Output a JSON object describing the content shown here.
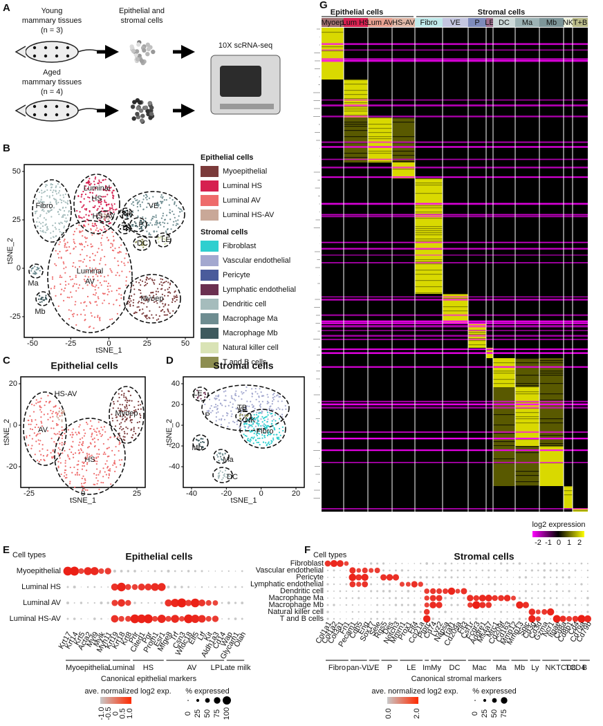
{
  "panel_a": {
    "letter": "A",
    "young": [
      "Young",
      "mammary tissues",
      "(n = 3)"
    ],
    "aged": [
      "Aged",
      "mammary tissues",
      "(n = 4)"
    ],
    "cells": [
      "Epithelial and",
      "stromal cells"
    ],
    "method": "10X scRNA-seq"
  },
  "panel_b": {
    "letter": "B",
    "x_label": "tSNE_1",
    "y_label": "tSNE_2",
    "x_ticks": [
      "-50",
      "-25",
      "0",
      "25",
      "50"
    ],
    "y_ticks": [
      "50",
      "25",
      "0",
      "-25"
    ],
    "clusters": [
      {
        "lines": [
          "Luminal",
          "AV"
        ]
      },
      {
        "lines": [
          "Luminal",
          "HS"
        ]
      },
      {
        "lines": [
          "Fibro"
        ]
      },
      {
        "lines": [
          "VE"
        ]
      },
      {
        "lines": [
          "Myoep"
        ]
      },
      {
        "lines": [
          "Ma"
        ]
      },
      {
        "lines": [
          "Mb"
        ]
      },
      {
        "lines": [
          "DC"
        ]
      },
      {
        "lines": [
          "LE"
        ]
      },
      {
        "lines": [
          "P"
        ]
      },
      {
        "lines": [
          "TB"
        ]
      },
      {
        "lines": [
          "NK"
        ]
      },
      {
        "lines": [
          "HS-AV"
        ]
      }
    ],
    "legend": [
      {
        "header": "Epithelial cells",
        "items": [
          {
            "name": "Myoepithelial",
            "color": "#7b3b3b"
          },
          {
            "name": "Luminal HS",
            "color": "#d62050"
          },
          {
            "name": "Luminal AV",
            "color": "#ee6b6b"
          },
          {
            "name": "Luminal HS-AV",
            "color": "#c9a898"
          }
        ]
      },
      {
        "header": "Stromal cells",
        "items": [
          {
            "name": "Fibroblast",
            "color": "#2ecfcf"
          },
          {
            "name": "Vascular endothelial",
            "color": "#a3a8cf"
          },
          {
            "name": "Pericyte",
            "color": "#4a5b9b"
          },
          {
            "name": "Lymphatic endothelial",
            "color": "#6b3050"
          },
          {
            "name": "Dendritic cell",
            "color": "#a5bcbc"
          },
          {
            "name": "Macrophage Ma",
            "color": "#6e8d91"
          },
          {
            "name": "Macrophage Mb",
            "color": "#3e5a5e"
          },
          {
            "name": "Natural killer cell",
            "color": "#d9e3b5"
          },
          {
            "name": "T and B cells",
            "color": "#8d8e50"
          }
        ]
      }
    ]
  },
  "panel_c": {
    "letter": "C",
    "title": "Epithelial cells",
    "x_label": "tSNE_1",
    "y_label": "tSNE_2",
    "x_ticks": [
      "-25",
      "0",
      "25"
    ],
    "y_ticks": [
      "20",
      "0",
      "-20"
    ],
    "labels": [
      "AV",
      "HS",
      "HS-AV",
      "Myoep"
    ]
  },
  "panel_d": {
    "letter": "D",
    "title": "Stromal cells",
    "x_label": "tSNE_1",
    "y_label": "tSNE_2",
    "x_ticks": [
      "-40",
      "-20",
      "0",
      "20"
    ],
    "y_ticks": [
      "40",
      "20",
      "0",
      "-20",
      "-40"
    ],
    "labels": [
      "LE",
      "VE",
      "P",
      "TB",
      "NK",
      "Fibro",
      "Mb",
      "Ma",
      "DC"
    ]
  },
  "panel_g": {
    "letter": "G",
    "groups": [
      "Epithelial cells",
      "Stromal cells"
    ],
    "clusters": [
      {
        "name": "Myoep",
        "color": "#a07070"
      },
      {
        "name": "Lum HS",
        "color": "#d62050"
      },
      {
        "name": "Lum AV",
        "color": "#e9a090"
      },
      {
        "name": "HS-AV",
        "color": "#e0b8a8"
      },
      {
        "name": "Fibro",
        "color": "#bfe9ea"
      },
      {
        "name": "VE",
        "color": "#c4c6e0"
      },
      {
        "name": "P",
        "color": "#7e8bbb"
      },
      {
        "name": "LE",
        "color": "#a07090"
      },
      {
        "name": "DC",
        "color": "#cdd9d9"
      },
      {
        "name": "Ma",
        "color": "#9db3b5"
      },
      {
        "name": "Mb",
        "color": "#7d9598"
      },
      {
        "name": "NK",
        "color": "#eef2dc"
      },
      {
        "name": "T+B",
        "color": "#b9ba88"
      }
    ],
    "colorbar_label": "log2 expression",
    "colorbar_ticks": [
      "-2",
      "-1",
      "0",
      "1",
      "2"
    ]
  },
  "panel_e": {
    "letter": "E",
    "title": "Epithelial cells",
    "rows_title": "Cell types",
    "rows": [
      "Myoepithelial",
      "Luminal HS",
      "Luminal AV",
      "Luminal HS-AV"
    ],
    "genes": [
      "Krt17",
      "Krt14",
      "Krt5",
      "Acta2",
      "Myl9",
      "Mylk",
      "Myh11",
      "Krt19",
      "Krt18",
      "Krt8",
      "Prlr",
      "Cited1",
      "Pgr",
      "Prom1",
      "Esr1",
      "Mfge8",
      "Trf",
      "Csn3",
      "Wfdc18",
      "Elf5",
      "Ltf",
      "Kit",
      "Aldh1a3",
      "Cd14",
      "Wap",
      "Glycam1",
      "Olah"
    ],
    "gene_groups": [
      "Myoepithelial",
      "Luminal",
      "HS",
      "AV",
      "LP",
      "Late milk"
    ],
    "x_label": "Canonical epithelial markers",
    "color_legend_title": "ave. normalized log2 exp.",
    "color_ticks": [
      "-1.0",
      "-0.5",
      "0",
      "0.5",
      "1.0"
    ],
    "size_legend_title": "% expressed",
    "size_ticks": [
      "0",
      "25",
      "50",
      "75",
      "100"
    ]
  },
  "panel_f": {
    "letter": "F",
    "title": "Stromal cells",
    "rows_title": "Cell types",
    "rows": [
      "Fibroblast",
      "Vascular endothelial",
      "Pericyte",
      "Lymphatic endothelial",
      "Dendritic cell",
      "Macrophage Ma",
      "Macrophage Mb",
      "Natural killer cell",
      "T and B cells"
    ],
    "genes": [
      "Col1a1",
      "Col1a2",
      "Col3a1",
      "Fn1",
      "Pecam1",
      "Cdh5",
      "Eng",
      "Sox17",
      "Sele",
      "Rgs5",
      "Des",
      "Notch3",
      "Mmrn1",
      "Prox1",
      "Flt4",
      "Ccl21a",
      "Ptprc",
      "Cd74",
      "Lyz2",
      "Napsa",
      "Traf1",
      "Cd209a",
      "Flt3",
      "Csf1r",
      "Fcgr3",
      "Adgre1",
      "Ms4a7",
      "Mrc1",
      "Cd209f",
      "Cd163",
      "Mmp12",
      "Mmp13",
      "Spic",
      "Cd3g",
      "Cd3d",
      "Gzma",
      "Ncr1",
      "Itgae",
      "Cd8a",
      "Cd8b1",
      "Cd4",
      "Cd79a",
      "Cd79b"
    ],
    "gene_groups": [
      "Fibro",
      "pan-VL",
      "VE",
      "P",
      "LE",
      "Im",
      "My",
      "DC",
      "Mac",
      "Ma",
      "Mb",
      "Ly",
      "NK",
      "TCD8",
      "TCD4",
      "B"
    ],
    "x_label": "Canonical stromal markers",
    "color_legend_title": "ave. normalized log2 exp.",
    "color_ticks": [
      "0.0",
      "2.0"
    ],
    "size_legend_title": "% expressed",
    "size_ticks": [
      "0",
      "25",
      "50",
      "75"
    ]
  }
}
